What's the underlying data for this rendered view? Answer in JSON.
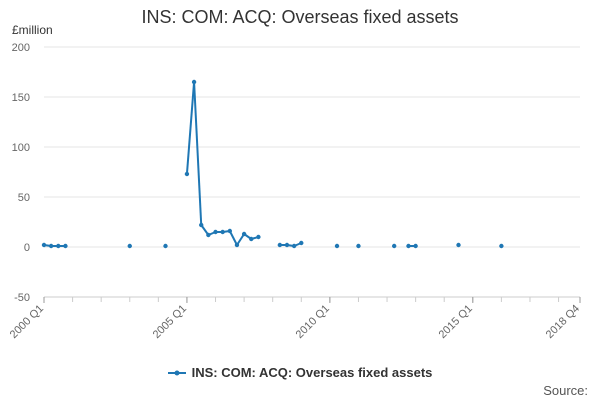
{
  "chart_data": {
    "type": "line",
    "title": "INS: COM: ACQ: Overseas fixed assets",
    "ylabel": "£million",
    "xlabel": "",
    "ylim": [
      -50,
      200
    ],
    "yticks": [
      "200",
      "150",
      "100",
      "50",
      "0",
      "-50"
    ],
    "xticks": [
      "2000 Q1",
      "2005 Q1",
      "2010 Q1",
      "2015 Q1",
      "2018 Q4"
    ],
    "xlim": [
      "2000 Q1",
      "2018 Q4"
    ],
    "grid": true,
    "legend_position": "bottom",
    "series": [
      {
        "name": "INS: COM: ACQ: Overseas fixed assets",
        "color": "#1f77b4",
        "points": [
          {
            "x": "2000 Q1",
            "y": 2
          },
          {
            "x": "2000 Q2",
            "y": 1
          },
          {
            "x": "2000 Q3",
            "y": 1
          },
          {
            "x": "2000 Q4",
            "y": 1
          },
          {
            "x": "2003 Q1",
            "y": 1
          },
          {
            "x": "2004 Q2",
            "y": 1
          },
          {
            "x": "2005 Q1",
            "y": 73
          },
          {
            "x": "2005 Q2",
            "y": 165
          },
          {
            "x": "2005 Q3",
            "y": 22
          },
          {
            "x": "2005 Q4",
            "y": 12
          },
          {
            "x": "2006 Q1",
            "y": 15
          },
          {
            "x": "2006 Q2",
            "y": 15
          },
          {
            "x": "2006 Q3",
            "y": 16
          },
          {
            "x": "2006 Q4",
            "y": 2
          },
          {
            "x": "2007 Q1",
            "y": 13
          },
          {
            "x": "2007 Q2",
            "y": 8
          },
          {
            "x": "2007 Q3",
            "y": 10
          },
          {
            "x": "2008 Q2",
            "y": 2
          },
          {
            "x": "2008 Q3",
            "y": 2
          },
          {
            "x": "2008 Q4",
            "y": 1
          },
          {
            "x": "2009 Q1",
            "y": 4
          },
          {
            "x": "2010 Q2",
            "y": 1
          },
          {
            "x": "2011 Q1",
            "y": 1
          },
          {
            "x": "2012 Q2",
            "y": 1
          },
          {
            "x": "2012 Q4",
            "y": 1
          },
          {
            "x": "2013 Q1",
            "y": 1
          },
          {
            "x": "2014 Q3",
            "y": 2
          },
          {
            "x": "2016 Q1",
            "y": 1
          }
        ]
      }
    ]
  },
  "source_label": "Source:"
}
